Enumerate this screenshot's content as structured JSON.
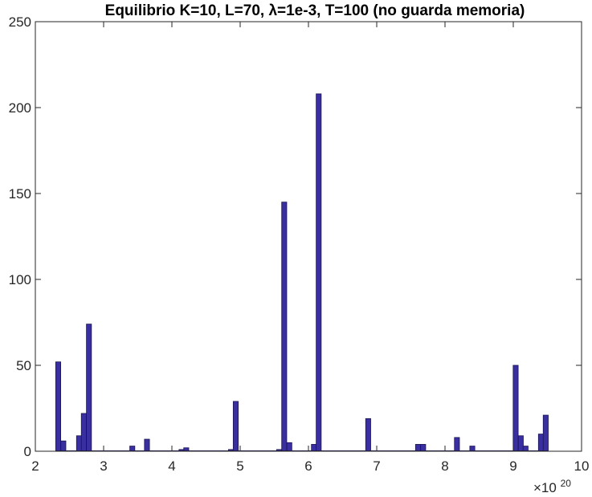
{
  "chart_data": {
    "type": "bar",
    "title": "Equilibrio K=10, L=70, λ=1e-3, T=100 (no guarda memoria)",
    "xlabel": "",
    "ylabel": "",
    "x_exponent_label": "×10",
    "x_exponent_power": "20",
    "xlim": [
      2,
      10
    ],
    "ylim": [
      0,
      250
    ],
    "xticks": [
      2,
      3,
      4,
      5,
      6,
      7,
      8,
      9,
      10
    ],
    "yticks": [
      0,
      50,
      100,
      150,
      200,
      250
    ],
    "bin_width": 0.0735,
    "bar_color": "#3a2fa0",
    "bars": [
      {
        "x": 2.335,
        "value": 52
      },
      {
        "x": 2.41,
        "value": 6
      },
      {
        "x": 2.64,
        "value": 9
      },
      {
        "x": 2.71,
        "value": 22
      },
      {
        "x": 2.785,
        "value": 74
      },
      {
        "x": 3.42,
        "value": 3
      },
      {
        "x": 3.635,
        "value": 7
      },
      {
        "x": 4.14,
        "value": 1
      },
      {
        "x": 4.21,
        "value": 2
      },
      {
        "x": 4.865,
        "value": 1
      },
      {
        "x": 4.935,
        "value": 29
      },
      {
        "x": 5.57,
        "value": 1
      },
      {
        "x": 5.645,
        "value": 145
      },
      {
        "x": 5.72,
        "value": 5
      },
      {
        "x": 6.08,
        "value": 4
      },
      {
        "x": 6.15,
        "value": 208
      },
      {
        "x": 6.875,
        "value": 19
      },
      {
        "x": 7.605,
        "value": 4
      },
      {
        "x": 7.68,
        "value": 4
      },
      {
        "x": 8.175,
        "value": 8
      },
      {
        "x": 8.4,
        "value": 3
      },
      {
        "x": 9.035,
        "value": 50
      },
      {
        "x": 9.11,
        "value": 9
      },
      {
        "x": 9.18,
        "value": 3
      },
      {
        "x": 9.405,
        "value": 10
      },
      {
        "x": 9.475,
        "value": 21
      }
    ]
  }
}
